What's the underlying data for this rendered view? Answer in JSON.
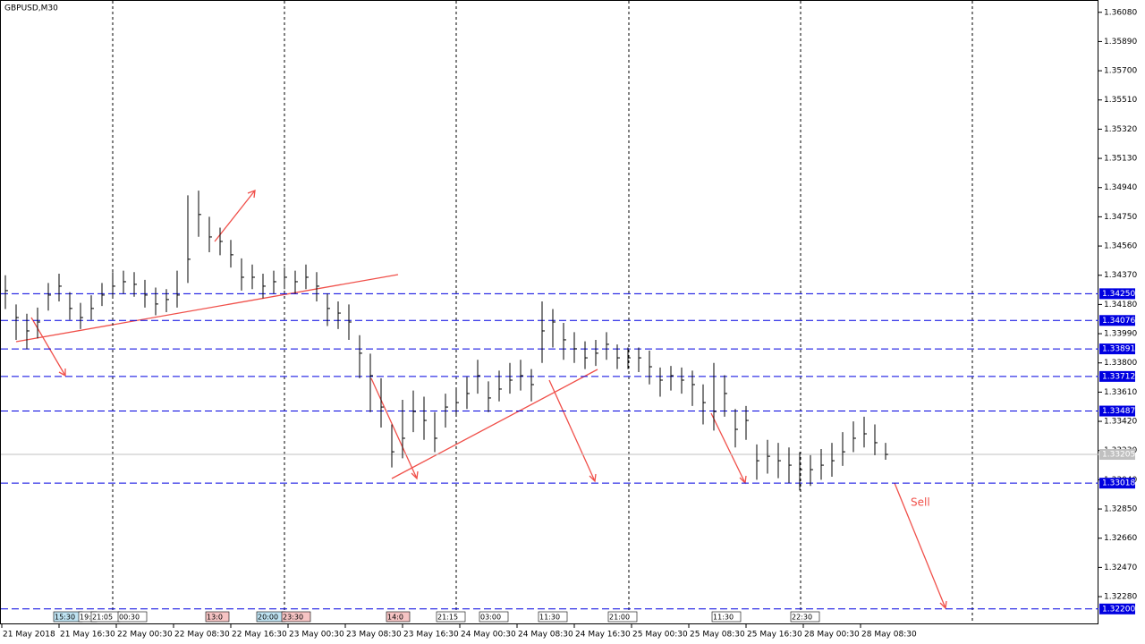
{
  "chart_data": {
    "type": "ohlc",
    "title": "GBPUSD,M30",
    "ylim": [
      1.321,
      1.3616
    ],
    "yticks": [
      {
        "value": 1.3608,
        "label": "1.36080"
      },
      {
        "value": 1.3589,
        "label": "1.35890"
      },
      {
        "value": 1.357,
        "label": "1.35700"
      },
      {
        "value": 1.3551,
        "label": "1.35510"
      },
      {
        "value": 1.3532,
        "label": "1.35320"
      },
      {
        "value": 1.3513,
        "label": "1.35130"
      },
      {
        "value": 1.3494,
        "label": "1.34940"
      },
      {
        "value": 1.3475,
        "label": "1.34750"
      },
      {
        "value": 1.3456,
        "label": "1.34560"
      },
      {
        "value": 1.3437,
        "label": "1.34370"
      },
      {
        "value": 1.3418,
        "label": "1.34180"
      },
      {
        "value": 1.3399,
        "label": "1.33990"
      },
      {
        "value": 1.338,
        "label": "1.33800"
      },
      {
        "value": 1.3361,
        "label": "1.33610"
      },
      {
        "value": 1.3342,
        "label": "1.33420"
      },
      {
        "value": 1.3323,
        "label": "1.33230"
      },
      {
        "value": 1.3304,
        "label": "1.33040"
      },
      {
        "value": 1.3285,
        "label": "1.32850"
      },
      {
        "value": 1.3266,
        "label": "1.32660"
      },
      {
        "value": 1.3247,
        "label": "1.32470"
      },
      {
        "value": 1.3228,
        "label": "1.32280"
      }
    ],
    "x_labels": [
      "21 May 2018",
      "21 May 16:30",
      "22 May 00:30",
      "22 May 08:30",
      "22 May 16:30",
      "23 May 00:30",
      "23 May 08:30",
      "23 May 16:30",
      "24 May 00:30",
      "24 May 08:30",
      "24 May 16:30",
      "25 May 00:30",
      "25 May 08:30",
      "25 May 16:30",
      "28 May 00:30",
      "28 May 08:30"
    ],
    "bar_color": "#000000",
    "high": [
      1.3437,
      1.3418,
      1.3412,
      1.3416,
      1.3432,
      1.3438,
      1.3426,
      1.3419,
      1.3424,
      1.3432,
      1.3439,
      1.344,
      1.3439,
      1.3434,
      1.3429,
      1.3428,
      1.344,
      1.3489,
      1.3492,
      1.3475,
      1.3468,
      1.346,
      1.3448,
      1.3444,
      1.3438,
      1.344,
      1.3442,
      1.344,
      1.3444,
      1.3439,
      1.3425,
      1.342,
      1.3418,
      1.3398,
      1.3386,
      1.337,
      1.334,
      1.3356,
      1.3362,
      1.3358,
      1.3348,
      1.336,
      1.3363,
      1.3371,
      1.3382,
      1.3368,
      1.3375,
      1.338,
      1.3382,
      1.3376,
      1.342,
      1.3415,
      1.3406,
      1.34,
      1.3394,
      1.3395,
      1.34,
      1.3392,
      1.339,
      1.339,
      1.3388,
      1.3377,
      1.3378,
      1.3377,
      1.3375,
      1.3366,
      1.338,
      1.3372,
      1.335,
      1.3352,
      1.3327,
      1.333,
      1.3328,
      1.3325,
      1.3322,
      1.332,
      1.3324,
      1.3328,
      1.3335,
      1.3342,
      1.3345,
      1.334,
      1.3328
    ],
    "low": [
      1.3415,
      1.3395,
      1.3389,
      1.3396,
      1.3414,
      1.342,
      1.3408,
      1.3402,
      1.3408,
      1.3417,
      1.3422,
      1.3425,
      1.3423,
      1.3416,
      1.3411,
      1.3413,
      1.3416,
      1.3432,
      1.3462,
      1.3452,
      1.345,
      1.3442,
      1.3427,
      1.3428,
      1.3422,
      1.3425,
      1.3428,
      1.3425,
      1.3428,
      1.342,
      1.3404,
      1.3402,
      1.3395,
      1.337,
      1.3348,
      1.3338,
      1.3312,
      1.3318,
      1.3335,
      1.333,
      1.3322,
      1.3338,
      1.3345,
      1.335,
      1.336,
      1.3348,
      1.3355,
      1.336,
      1.3362,
      1.3355,
      1.338,
      1.339,
      1.3382,
      1.338,
      1.3376,
      1.3378,
      1.3382,
      1.3376,
      1.3376,
      1.3374,
      1.3366,
      1.3358,
      1.3362,
      1.336,
      1.3352,
      1.334,
      1.3336,
      1.3345,
      1.3325,
      1.333,
      1.3304,
      1.3308,
      1.3305,
      1.3302,
      1.3297,
      1.33,
      1.3304,
      1.3306,
      1.3313,
      1.3322,
      1.3325,
      1.332,
      1.3317
    ],
    "close": [
      1.3427,
      1.34095,
      1.34008,
      1.34066,
      1.34241,
      1.34299,
      1.34154,
      1.34095,
      1.34154,
      1.34241,
      1.34299,
      1.34328,
      1.34311,
      1.34241,
      1.34183,
      1.34212,
      1.34241,
      1.34474,
      1.34765,
      1.34619,
      1.3459,
      1.34503,
      1.34357,
      1.34357,
      1.34299,
      1.34328,
      1.34357,
      1.34328,
      1.34357,
      1.34299,
      1.34154,
      1.34124,
      1.34066,
      1.33863,
      1.33717,
      1.33513,
      1.33222,
      1.3331,
      1.33484,
      1.33426,
      1.3331,
      1.33513,
      1.33542,
      1.33601,
      1.33717,
      1.33572,
      1.3363,
      1.33688,
      1.33717,
      1.33659,
      1.34008,
      1.34066,
      1.3395,
      1.33892,
      1.33833,
      1.33863,
      1.33921,
      1.33833,
      1.33833,
      1.33833,
      1.33775,
      1.33688,
      1.33717,
      1.33688,
      1.33659,
      1.33542,
      1.33484,
      1.33601,
      1.33368,
      1.33426,
      1.33164,
      1.33193,
      1.33164,
      1.33135,
      1.33106,
      1.33106,
      1.33135,
      1.33164,
      1.33222,
      1.3331,
      1.33339,
      1.33281,
      1.33205
    ],
    "levels": [
      {
        "value": 1.3425,
        "label": "1.34250"
      },
      {
        "value": 1.34076,
        "label": "1.34076"
      },
      {
        "value": 1.33891,
        "label": "1.33891"
      },
      {
        "value": 1.33712,
        "label": "1.33712"
      },
      {
        "value": 1.33487,
        "label": "1.33487"
      },
      {
        "value": 1.33018,
        "label": "1.33018"
      },
      {
        "value": 1.322,
        "label": "1.32200"
      }
    ],
    "level_color": "#0000e0",
    "current_price": {
      "value": 1.33205,
      "label": "1.33205"
    },
    "annotation": "Sell",
    "events": [
      {
        "label": "15:30",
        "color": "#bfe3f2"
      },
      {
        "label": "19:",
        "color": "#ffffff"
      },
      {
        "label": "21:05",
        "color": "#ffffff"
      },
      {
        "label": "00:30",
        "color": "#ffffff"
      },
      {
        "label": "13:0",
        "color": "#f6c4c4"
      },
      {
        "label": "20:00",
        "color": "#bfe3f2"
      },
      {
        "label": "23:30",
        "color": "#f6c4c4"
      },
      {
        "label": "14:0",
        "color": "#f6c4c4"
      },
      {
        "label": "21:15",
        "color": "#ffffff"
      },
      {
        "label": "03:00",
        "color": "#ffffff"
      },
      {
        "label": "11:30",
        "color": "#ffffff"
      },
      {
        "label": "21:00",
        "color": "#ffffff"
      },
      {
        "label": "11:30",
        "color": "#ffffff"
      },
      {
        "label": "22:30",
        "color": "#ffffff"
      }
    ]
  }
}
